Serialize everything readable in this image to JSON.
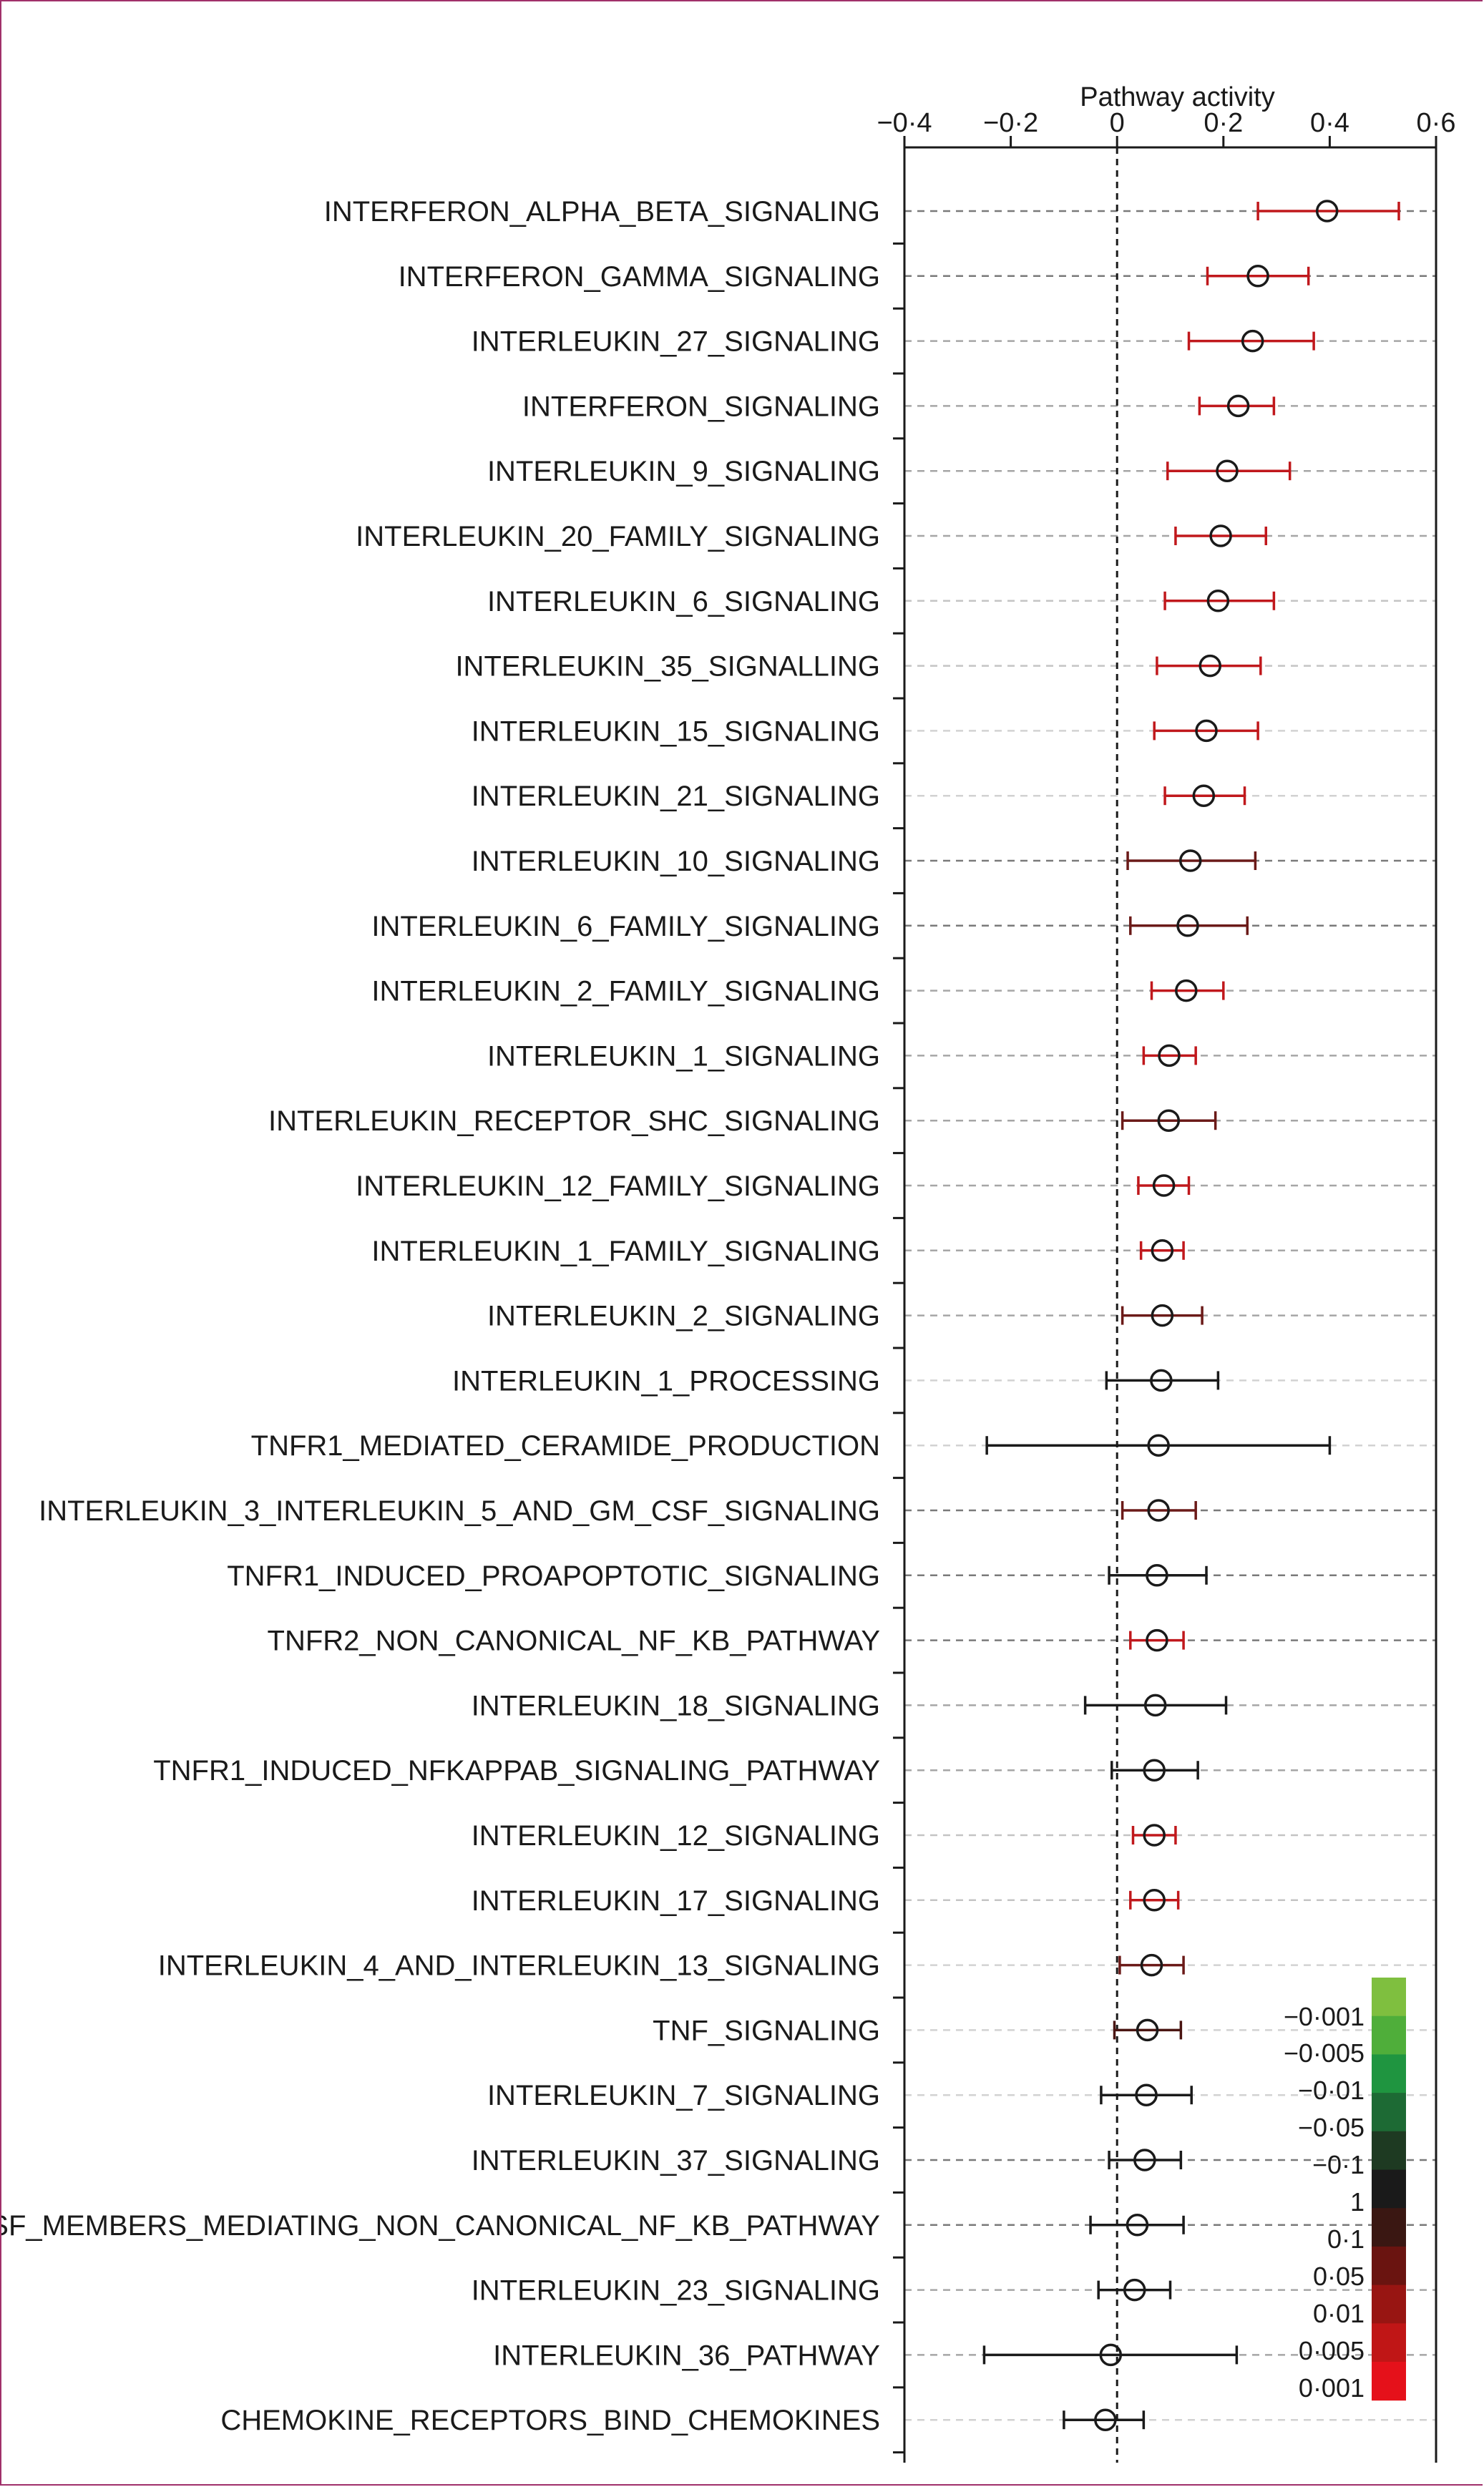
{
  "chart_data": {
    "type": "scatter",
    "xlabel": "Pathway activity",
    "xlim": [
      -0.4,
      0.6
    ],
    "x_ticks": [
      "−0·4",
      "−0·2",
      "0",
      "0·2",
      "0·4",
      "0·6"
    ],
    "x_tick_values": [
      -0.4,
      -0.2,
      0,
      0.2,
      0.4,
      0.6
    ],
    "points": [
      {
        "label": "INTERFERON_ALPHA_BETA_SIGNALING",
        "estimate": 0.395,
        "low": 0.265,
        "high": 0.53,
        "color": "#c0181c",
        "grid": "#7a7a7a"
      },
      {
        "label": "INTERFERON_GAMMA_SIGNALING",
        "estimate": 0.265,
        "low": 0.17,
        "high": 0.36,
        "color": "#c0181c",
        "grid": "#7a7a7a"
      },
      {
        "label": "INTERLEUKIN_27_SIGNALING",
        "estimate": 0.255,
        "low": 0.135,
        "high": 0.37,
        "color": "#c0181c",
        "grid": "#a6a6a6"
      },
      {
        "label": "INTERFERON_SIGNALING",
        "estimate": 0.228,
        "low": 0.155,
        "high": 0.295,
        "color": "#c0181c",
        "grid": "#a6a6a6"
      },
      {
        "label": "INTERLEUKIN_9_SIGNALING",
        "estimate": 0.207,
        "low": 0.095,
        "high": 0.325,
        "color": "#c0181c",
        "grid": "#a6a6a6"
      },
      {
        "label": "INTERLEUKIN_20_FAMILY_SIGNALING",
        "estimate": 0.195,
        "low": 0.11,
        "high": 0.28,
        "color": "#c0181c",
        "grid": "#a6a6a6"
      },
      {
        "label": "INTERLEUKIN_6_SIGNALING",
        "estimate": 0.19,
        "low": 0.09,
        "high": 0.295,
        "color": "#c0181c",
        "grid": "#c4c4c4"
      },
      {
        "label": "INTERLEUKIN_35_SIGNALLING",
        "estimate": 0.175,
        "low": 0.075,
        "high": 0.27,
        "color": "#c0181c",
        "grid": "#c4c4c4"
      },
      {
        "label": "INTERLEUKIN_15_SIGNALING",
        "estimate": 0.168,
        "low": 0.07,
        "high": 0.265,
        "color": "#c0181c",
        "grid": "#d2d2d2"
      },
      {
        "label": "INTERLEUKIN_21_SIGNALING",
        "estimate": 0.163,
        "low": 0.09,
        "high": 0.24,
        "color": "#c0181c",
        "grid": "#d2d2d2"
      },
      {
        "label": "INTERLEUKIN_10_SIGNALING",
        "estimate": 0.138,
        "low": 0.02,
        "high": 0.26,
        "color": "#6b1a18",
        "grid": "#7a7a7a"
      },
      {
        "label": "INTERLEUKIN_6_FAMILY_SIGNALING",
        "estimate": 0.133,
        "low": 0.025,
        "high": 0.245,
        "color": "#6b1a18",
        "grid": "#7a7a7a"
      },
      {
        "label": "INTERLEUKIN_2_FAMILY_SIGNALING",
        "estimate": 0.13,
        "low": 0.065,
        "high": 0.2,
        "color": "#c0181c",
        "grid": "#a6a6a6"
      },
      {
        "label": "INTERLEUKIN_1_SIGNALING",
        "estimate": 0.098,
        "low": 0.05,
        "high": 0.148,
        "color": "#c0181c",
        "grid": "#a6a6a6"
      },
      {
        "label": "INTERLEUKIN_RECEPTOR_SHC_SIGNALING",
        "estimate": 0.097,
        "low": 0.01,
        "high": 0.185,
        "color": "#6b1a18",
        "grid": "#a6a6a6"
      },
      {
        "label": "INTERLEUKIN_12_FAMILY_SIGNALING",
        "estimate": 0.088,
        "low": 0.04,
        "high": 0.135,
        "color": "#c0181c",
        "grid": "#a6a6a6"
      },
      {
        "label": "INTERLEUKIN_1_FAMILY_SIGNALING",
        "estimate": 0.085,
        "low": 0.045,
        "high": 0.125,
        "color": "#c0181c",
        "grid": "#a6a6a6"
      },
      {
        "label": "INTERLEUKIN_2_SIGNALING",
        "estimate": 0.085,
        "low": 0.01,
        "high": 0.16,
        "color": "#6b1a18",
        "grid": "#a6a6a6"
      },
      {
        "label": "INTERLEUKIN_1_PROCESSING",
        "estimate": 0.083,
        "low": -0.02,
        "high": 0.19,
        "color": "#1a1a1a",
        "grid": "#d2d2d2"
      },
      {
        "label": "TNFR1_MEDIATED_CERAMIDE_PRODUCTION",
        "estimate": 0.078,
        "low": -0.245,
        "high": 0.4,
        "color": "#1a1a1a",
        "grid": "#d2d2d2"
      },
      {
        "label": "INTERLEUKIN_3_INTERLEUKIN_5_AND_GM_CSF_SIGNALING",
        "estimate": 0.078,
        "low": 0.01,
        "high": 0.148,
        "color": "#6b1a18",
        "grid": "#7a7a7a"
      },
      {
        "label": "TNFR1_INDUCED_PROAPOPTOTIC_SIGNALING",
        "estimate": 0.075,
        "low": -0.015,
        "high": 0.168,
        "color": "#1a1a1a",
        "grid": "#7a7a7a"
      },
      {
        "label": "TNFR2_NON_CANONICAL_NF_KB_PATHWAY",
        "estimate": 0.075,
        "low": 0.025,
        "high": 0.125,
        "color": "#c0181c",
        "grid": "#7a7a7a"
      },
      {
        "label": "INTERLEUKIN_18_SIGNALING",
        "estimate": 0.072,
        "low": -0.06,
        "high": 0.205,
        "color": "#1a1a1a",
        "grid": "#a6a6a6"
      },
      {
        "label": "TNFR1_INDUCED_NFKAPPAB_SIGNALING_PATHWAY",
        "estimate": 0.07,
        "low": -0.01,
        "high": 0.152,
        "color": "#1a1a1a",
        "grid": "#a6a6a6"
      },
      {
        "label": "INTERLEUKIN_12_SIGNALING",
        "estimate": 0.07,
        "low": 0.03,
        "high": 0.11,
        "color": "#c0181c",
        "grid": "#c4c4c4"
      },
      {
        "label": "INTERLEUKIN_17_SIGNALING",
        "estimate": 0.07,
        "low": 0.025,
        "high": 0.115,
        "color": "#c0181c",
        "grid": "#c4c4c4"
      },
      {
        "label": "INTERLEUKIN_4_AND_INTERLEUKIN_13_SIGNALING",
        "estimate": 0.065,
        "low": 0.005,
        "high": 0.125,
        "color": "#6b1a18",
        "grid": "#d2d2d2"
      },
      {
        "label": "TNF_SIGNALING",
        "estimate": 0.057,
        "low": -0.005,
        "high": 0.12,
        "color": "#4a1512",
        "grid": "#d2d2d2"
      },
      {
        "label": "INTERLEUKIN_7_SIGNALING",
        "estimate": 0.055,
        "low": -0.03,
        "high": 0.14,
        "color": "#1a1a1a",
        "grid": "#d2d2d2"
      },
      {
        "label": "INTERLEUKIN_37_SIGNALING",
        "estimate": 0.052,
        "low": -0.015,
        "high": 0.12,
        "color": "#1a1a1a",
        "grid": "#7a7a7a"
      },
      {
        "label": "TNFSF_MEMBERS_MEDIATING_NON_CANONICAL_NF_KB_PATHWAY",
        "estimate": 0.038,
        "low": -0.05,
        "high": 0.125,
        "color": "#1a1a1a",
        "grid": "#7a7a7a"
      },
      {
        "label": "INTERLEUKIN_23_SIGNALING",
        "estimate": 0.033,
        "low": -0.035,
        "high": 0.1,
        "color": "#1a1a1a",
        "grid": "#a6a6a6"
      },
      {
        "label": "INTERLEUKIN_36_PATHWAY",
        "estimate": -0.012,
        "low": -0.25,
        "high": 0.225,
        "color": "#1a1a1a",
        "grid": "#a6a6a6"
      },
      {
        "label": "CHEMOKINE_RECEPTORS_BIND_CHEMOKINES",
        "estimate": -0.022,
        "low": -0.1,
        "high": 0.05,
        "color": "#1a1a1a",
        "grid": "#d2d2d2"
      }
    ],
    "legend": {
      "placement": "bottom-right",
      "labels": [
        "−0·001",
        "−0·005",
        "−0·01",
        "−0·05",
        "−0·1",
        "1",
        "0·1",
        "0·05",
        "0·01",
        "0·005",
        "0·001"
      ],
      "colors": [
        "#7fbf3f",
        "#4fae3a",
        "#1f9540",
        "#1d6a34",
        "#1e3a22",
        "#1a1a1a",
        "#3a1712",
        "#6a1410",
        "#981512",
        "#c01616",
        "#e5111a"
      ]
    }
  }
}
